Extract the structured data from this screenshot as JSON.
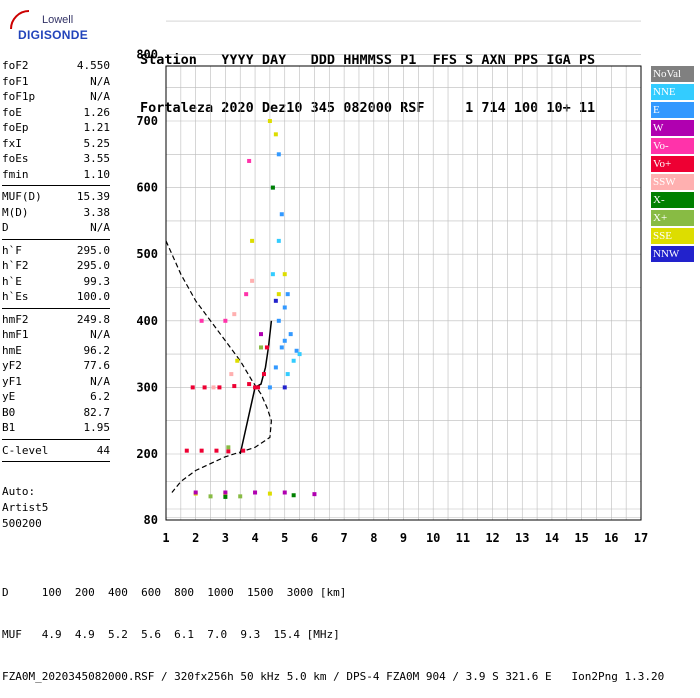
{
  "logo": {
    "line1": "Lowell",
    "line2": "DIGISONDE"
  },
  "header": {
    "line1": "Station   YYYY DAY   DDD HHMMSS P1  FFS S AXN PPS IGA PS",
    "line2": "Fortaleza 2020 Dez10 345 082000 RSF     1 714 100 10+ 11"
  },
  "params": {
    "group1": [
      {
        "k": "foF2",
        "v": "4.550"
      },
      {
        "k": "foF1",
        "v": "N/A"
      },
      {
        "k": "foF1p",
        "v": "N/A"
      },
      {
        "k": "foE",
        "v": "1.26"
      },
      {
        "k": "foEp",
        "v": "1.21"
      },
      {
        "k": "fxI",
        "v": "5.25"
      },
      {
        "k": "foEs",
        "v": "3.55"
      },
      {
        "k": "fmin",
        "v": "1.10"
      }
    ],
    "group2": [
      {
        "k": "MUF(D)",
        "v": "15.39"
      },
      {
        "k": "M(D)",
        "v": "3.38"
      },
      {
        "k": "D",
        "v": "N/A"
      }
    ],
    "group3": [
      {
        "k": "h`F",
        "v": "295.0"
      },
      {
        "k": "h`F2",
        "v": "295.0"
      },
      {
        "k": "h`E",
        "v": "99.3"
      },
      {
        "k": "h`Es",
        "v": "100.0"
      }
    ],
    "group4": [
      {
        "k": "hmF2",
        "v": "249.8"
      },
      {
        "k": "hmF1",
        "v": "N/A"
      },
      {
        "k": "hmE",
        "v": "96.2"
      },
      {
        "k": "yF2",
        "v": "77.6"
      },
      {
        "k": "yF1",
        "v": "N/A"
      },
      {
        "k": "yE",
        "v": "6.2"
      },
      {
        "k": "B0",
        "v": "82.7"
      },
      {
        "k": "B1",
        "v": "1.95"
      }
    ],
    "group5": [
      {
        "k": "C-level",
        "v": "44"
      }
    ]
  },
  "auto": {
    "line1": "Auto:",
    "line2": "Artist5",
    "line3": "500200"
  },
  "legend": [
    {
      "label": "NoVal",
      "color": "#808080"
    },
    {
      "label": "NNE",
      "color": "#33ccff"
    },
    {
      "label": "E",
      "color": "#3399ff"
    },
    {
      "label": "W",
      "color": "#b000b0"
    },
    {
      "label": "Vo-",
      "color": "#ff33aa"
    },
    {
      "label": "Vo+",
      "color": "#ee0033"
    },
    {
      "label": "SSW",
      "color": "#ffb0b0"
    },
    {
      "label": "X-",
      "color": "#008000"
    },
    {
      "label": "X+",
      "color": "#88bb44"
    },
    {
      "label": "SSE",
      "color": "#dddd00"
    },
    {
      "label": "NNW",
      "color": "#2222cc"
    }
  ],
  "bottom": {
    "line1": "D     100  200  400  600  800  1000  1500  3000 [km]",
    "line2": "MUF   4.9  4.9  5.2  5.6  6.1  7.0  9.3  15.4 [MHz]",
    "line3": "FZA0M_2020345082000.RSF / 320fx256h 50 kHz 5.0 km / DPS-4 FZA0M 904 / 3.9 S 321.6 E   Ion2Png 1.3.20"
  },
  "chart_data": {
    "type": "scatter",
    "title": "",
    "xlabel": "",
    "ylabel": "",
    "xlim": [
      1,
      17
    ],
    "ylim": [
      80,
      900
    ],
    "x_ticks": [
      1,
      2,
      3,
      4,
      5,
      6,
      7,
      8,
      9,
      10,
      11,
      12,
      13,
      14,
      15,
      16,
      17
    ],
    "y_ticks": [
      80,
      200,
      300,
      400,
      500,
      600,
      700,
      800,
      900
    ],
    "grid": true,
    "series": [
      {
        "name": "Vo+",
        "color": "#ee0033",
        "points": [
          [
            1.9,
            300
          ],
          [
            2.3,
            300
          ],
          [
            2.8,
            300
          ],
          [
            3.3,
            302
          ],
          [
            3.8,
            305
          ],
          [
            4.1,
            300
          ],
          [
            4.3,
            320
          ],
          [
            4.4,
            360
          ],
          [
            1.7,
            205
          ],
          [
            2.2,
            205
          ],
          [
            2.7,
            205
          ],
          [
            3.1,
            204
          ],
          [
            3.6,
            205
          ],
          [
            4.0,
            300
          ]
        ]
      },
      {
        "name": "E",
        "color": "#3399ff",
        "points": [
          [
            4.5,
            300
          ],
          [
            4.7,
            330
          ],
          [
            4.9,
            360
          ],
          [
            5.0,
            370
          ],
          [
            5.2,
            380
          ],
          [
            5.4,
            355
          ],
          [
            4.8,
            400
          ],
          [
            5.0,
            420
          ],
          [
            5.1,
            440
          ],
          [
            4.9,
            560
          ],
          [
            4.6,
            600
          ],
          [
            4.8,
            650
          ]
        ]
      },
      {
        "name": "NNE",
        "color": "#33ccff",
        "points": [
          [
            5.3,
            340
          ],
          [
            5.5,
            350
          ],
          [
            5.1,
            320
          ],
          [
            4.6,
            470
          ],
          [
            4.8,
            520
          ]
        ]
      },
      {
        "name": "SSE",
        "color": "#dddd00",
        "points": [
          [
            4.8,
            440
          ],
          [
            5.0,
            470
          ],
          [
            3.4,
            340
          ],
          [
            3.9,
            520
          ],
          [
            4.7,
            680
          ],
          [
            4.5,
            700
          ],
          [
            2.0,
            128
          ],
          [
            3.0,
            128
          ],
          [
            4.5,
            128
          ]
        ]
      },
      {
        "name": "W",
        "color": "#b000b0",
        "points": [
          [
            2.0,
            130
          ],
          [
            3.0,
            130
          ],
          [
            4.0,
            130
          ],
          [
            5.0,
            130
          ],
          [
            6.0,
            127
          ],
          [
            4.2,
            380
          ]
        ]
      },
      {
        "name": "X+",
        "color": "#88bb44",
        "points": [
          [
            2.5,
            123
          ],
          [
            3.5,
            123
          ],
          [
            4.2,
            360
          ],
          [
            3.1,
            210
          ]
        ]
      },
      {
        "name": "X-",
        "color": "#008000",
        "points": [
          [
            4.6,
            600
          ],
          [
            3.0,
            122
          ],
          [
            5.3,
            125
          ]
        ]
      },
      {
        "name": "Vo-",
        "color": "#ff33aa",
        "points": [
          [
            2.2,
            400
          ],
          [
            3.0,
            400
          ],
          [
            3.8,
            640
          ],
          [
            3.7,
            440
          ]
        ]
      },
      {
        "name": "SSW",
        "color": "#ffb0b0",
        "points": [
          [
            2.6,
            300
          ],
          [
            3.2,
            320
          ],
          [
            3.3,
            410
          ],
          [
            3.9,
            460
          ]
        ]
      },
      {
        "name": "NNW",
        "color": "#2222cc",
        "points": [
          [
            4.7,
            430
          ],
          [
            5.0,
            300
          ]
        ]
      }
    ],
    "profile_dashed": [
      [
        1.0,
        520
      ],
      [
        1.5,
        470
      ],
      [
        2.0,
        430
      ],
      [
        2.5,
        400
      ],
      [
        3.0,
        370
      ],
      [
        3.5,
        340
      ],
      [
        3.9,
        310
      ],
      [
        4.2,
        290
      ],
      [
        4.4,
        270
      ],
      [
        4.55,
        250
      ],
      [
        4.5,
        225
      ],
      [
        4.0,
        210
      ],
      [
        3.0,
        195
      ],
      [
        2.0,
        170
      ],
      [
        1.5,
        150
      ],
      [
        1.2,
        130
      ]
    ],
    "trace_curve": [
      [
        3.5,
        200
      ],
      [
        3.9,
        280
      ],
      [
        4.0,
        300
      ],
      [
        4.2,
        305
      ],
      [
        4.35,
        330
      ],
      [
        4.45,
        360
      ],
      [
        4.55,
        400
      ]
    ]
  }
}
